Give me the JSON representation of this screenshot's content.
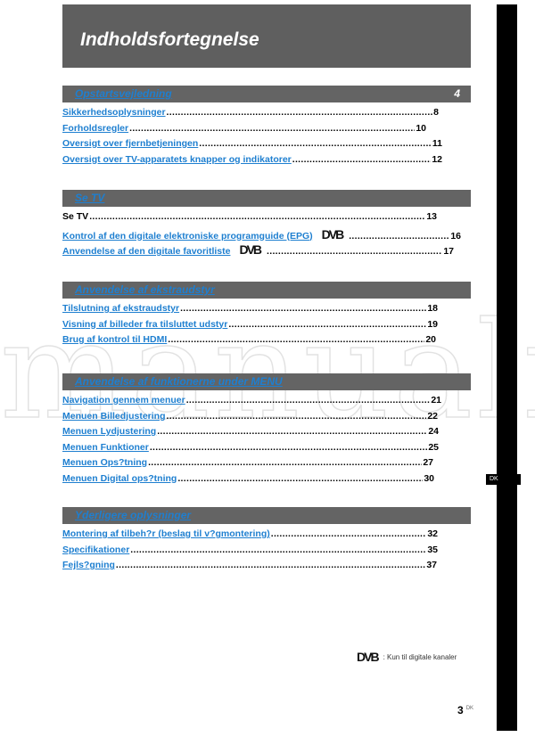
{
  "title": "Indholdsfortegnelse",
  "watermark": "manuali",
  "sections": [
    {
      "title": "Opstartsvejledning",
      "page": "4",
      "entries": [
        {
          "label": "Sikkerhedsoplysninger",
          "page": "8"
        },
        {
          "label": "Forholdsregler",
          "page": "10"
        },
        {
          "label": "Oversigt over fjernbetjeningen",
          "page": "11"
        },
        {
          "label": "Oversigt over TV-apparatets knapper og indikatorer",
          "page": "12"
        }
      ]
    },
    {
      "title": "Se TV",
      "page": "",
      "entries": [
        {
          "label": "Se TV",
          "page": "13",
          "plain": true
        },
        {
          "label": "Kontrol af den digitale elektroniske programguide (EPG)",
          "page": "16",
          "dvb": "DVB"
        },
        {
          "label": "Anvendelse af den digitale favoritliste",
          "page": "17",
          "dvb": "DVB"
        }
      ]
    },
    {
      "title": "Anvendelse af ekstraudstyr",
      "page": "",
      "entries": [
        {
          "label": "Tilslutning af ekstraudstyr",
          "page": "18"
        },
        {
          "label": "Visning af billeder fra tilsluttet udstyr",
          "page": "19"
        },
        {
          "label": "Brug af kontrol til HDMI",
          "page": "20"
        }
      ]
    },
    {
      "title": "Anvendelse af funktionerne under MENU",
      "page": "",
      "entries": [
        {
          "label": "Navigation gennem menuer",
          "page": "21"
        },
        {
          "label": "Menuen Billedjustering",
          "page": "22"
        },
        {
          "label": "Menuen Lydjustering",
          "page": "24"
        },
        {
          "label": "Menuen Funktioner",
          "page": "25"
        },
        {
          "label": "Menuen Ops?tning",
          "page": "27"
        },
        {
          "label": "Menuen Digital ops?tning",
          "page": "30"
        }
      ]
    },
    {
      "title": "Yderligere oplysninger",
      "page": "",
      "entries": [
        {
          "label": "Montering af tilbeh?r (beslag til v?gmontering)",
          "page": "32"
        },
        {
          "label": "Specifikationer",
          "page": "35"
        },
        {
          "label": "Fejls?gning",
          "page": "37"
        }
      ]
    }
  ],
  "legend": {
    "logo": "DVB",
    "text": ": Kun til digitale kanaler"
  },
  "side_tab": "DK",
  "page_number": "3",
  "page_lang": "DK"
}
